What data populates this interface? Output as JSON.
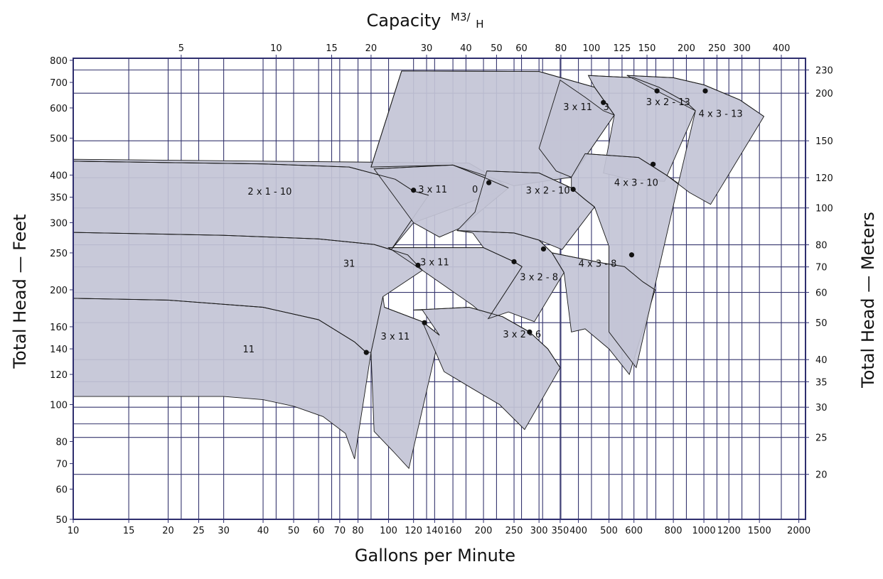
{
  "chart_data": {
    "type": "area",
    "title": "Capacity",
    "top_unit_main": "M3/",
    "top_unit_sub": "H",
    "xlabel": "Gallons per Minute",
    "ylabel": "Total Head — Feet",
    "y2label": "Total Head — Meters",
    "x_scale": "log",
    "y_scale": "log",
    "xlim": [
      10,
      2100
    ],
    "ylim": [
      50,
      810
    ],
    "grid": true,
    "colors": {
      "fill": "#c3c4d6",
      "frame": "#2e2e6e",
      "grid": "#35356e",
      "curve": "#1a1a1a",
      "dot": "#111111"
    },
    "x_ticks": [
      10,
      15,
      20,
      25,
      30,
      40,
      50,
      60,
      70,
      80,
      100,
      120,
      140,
      160,
      200,
      250,
      300,
      350,
      400,
      500,
      600,
      800,
      1000,
      1200,
      1500,
      2000
    ],
    "x_tick_labels": [
      "10",
      "15",
      "20",
      "25",
      "30",
      "40",
      "50",
      "60",
      "70",
      "80",
      "100",
      "120",
      "140",
      "160",
      "200",
      "250",
      "300",
      "350",
      "400",
      "500",
      "600",
      "800",
      "1000",
      "1200",
      "1500",
      "2000"
    ],
    "y_ticks": [
      50,
      60,
      70,
      80,
      100,
      120,
      140,
      160,
      200,
      250,
      300,
      350,
      400,
      500,
      600,
      700,
      800
    ],
    "y_tick_labels": [
      "50",
      "60",
      "70",
      "80",
      "100",
      "120",
      "140",
      "160",
      "200",
      "250",
      "300",
      "350",
      "400",
      "500",
      "600",
      "700",
      "800"
    ],
    "x2_ticks_gpm": [
      22,
      44,
      66,
      88,
      132,
      176,
      220,
      264,
      308,
      352,
      440,
      550,
      660,
      704,
      880,
      1100,
      1320,
      1760
    ],
    "x2_tick_labels": [
      "5",
      "10",
      "15",
      "20",
      "30",
      "40",
      "50",
      "60",
      "80",
      "100",
      "125",
      "150",
      "200",
      "250",
      "300",
      "400"
    ],
    "x2_label_gpm": [
      22,
      44,
      66,
      88,
      132,
      176,
      220,
      264,
      352,
      440,
      550,
      660,
      880,
      1100,
      1320,
      1760
    ],
    "y2_ticks_ft": [
      65.6,
      82,
      98.4,
      114.8,
      131.2,
      164,
      196.9,
      229.7,
      262.5,
      328,
      393.7,
      492,
      656,
      754.6
    ],
    "y2_tick_labels": [
      "20",
      "25",
      "30",
      "35",
      "40",
      "50",
      "60",
      "70",
      "80",
      "100",
      "120",
      "150",
      "200",
      "230"
    ],
    "extra_h_grid_ft": [
      89
    ],
    "regions": [
      {
        "name": "11",
        "label_at": [
          36,
          137
        ],
        "polygon": [
          [
            10,
            190
          ],
          [
            20,
            188
          ],
          [
            40,
            180
          ],
          [
            60,
            167
          ],
          [
            78,
            146
          ],
          [
            85,
            137
          ],
          [
            88,
            137
          ],
          [
            78,
            72
          ],
          [
            73,
            84
          ],
          [
            62,
            93
          ],
          [
            50,
            99
          ],
          [
            40,
            103
          ],
          [
            30,
            105
          ],
          [
            10,
            105
          ]
        ]
      },
      {
        "name": "31",
        "label_at": [
          75,
          230
        ],
        "polygon": [
          [
            10,
            283
          ],
          [
            30,
            278
          ],
          [
            60,
            272
          ],
          [
            90,
            263
          ],
          [
            115,
            247
          ],
          [
            128,
            225
          ],
          [
            96,
            192
          ],
          [
            88,
            137
          ],
          [
            85,
            137
          ],
          [
            78,
            146
          ],
          [
            60,
            167
          ],
          [
            40,
            180
          ],
          [
            20,
            188
          ],
          [
            10,
            190
          ]
        ]
      },
      {
        "name": "2 x 1 - 10",
        "label_at": [
          42,
          355
        ],
        "polygon": [
          [
            10,
            435
          ],
          [
            40,
            428
          ],
          [
            75,
            420
          ],
          [
            105,
            390
          ],
          [
            120,
            363
          ],
          [
            134,
            354
          ],
          [
            102,
            255
          ],
          [
            90,
            263
          ],
          [
            60,
            272
          ],
          [
            30,
            278
          ],
          [
            10,
            283
          ]
        ]
      },
      {
        "name": "3 x 11",
        "label_at": [
          105,
          148
        ],
        "polygon": [
          [
            97,
            180
          ],
          [
            128,
            165
          ],
          [
            145,
            152
          ],
          [
            116,
            68
          ],
          [
            104,
            75
          ],
          [
            90,
            85
          ],
          [
            88,
            137
          ],
          [
            96,
            192
          ]
        ]
      },
      {
        "name": "3 x 11",
        "label_at": [
          140,
          232
        ],
        "polygon": [
          [
            100,
            258
          ],
          [
            200,
            258
          ],
          [
            250,
            237
          ],
          [
            265,
            230
          ],
          [
            207,
            168
          ],
          [
            185,
            182
          ],
          [
            128,
            225
          ]
        ]
      },
      {
        "name": "3 x 11",
        "label_at": [
          138,
          360
        ],
        "polygon": [
          [
            102,
            255
          ],
          [
            134,
            354
          ],
          [
            120,
            363
          ],
          [
            105,
            390
          ],
          [
            75,
            420
          ],
          [
            40,
            428
          ],
          [
            10,
            435
          ],
          [
            10,
            440
          ],
          [
            180,
            430
          ],
          [
            220,
            390
          ],
          [
            240,
            370
          ],
          [
            120,
            300
          ]
        ]
      },
      {
        "name": "0",
        "label_at": [
          188,
          360
        ],
        "polygon": [
          [
            90,
            415
          ],
          [
            160,
            425
          ],
          [
            200,
            395
          ],
          [
            240,
            370
          ],
          [
            168,
            290
          ],
          [
            145,
            275
          ],
          [
            120,
            300
          ]
        ]
      },
      {
        "name": "3 x 11",
        "label_at": [
          398,
          592
        ],
        "polygon": [
          [
            88,
            420
          ],
          [
            110,
            750
          ],
          [
            300,
            748
          ],
          [
            450,
            680
          ],
          [
            520,
            575
          ],
          [
            380,
            395
          ],
          [
            250,
            375
          ],
          [
            200,
            400
          ],
          [
            160,
            425
          ]
        ]
      },
      {
        "name": "3",
        "label_at": [
          490,
          592
        ],
        "polygon": [
          [
            350,
            710
          ],
          [
            420,
            640
          ],
          [
            480,
            590
          ],
          [
            520,
            575
          ],
          [
            380,
            395
          ],
          [
            340,
            410
          ],
          [
            300,
            470
          ]
        ]
      },
      {
        "name": "3 x 2 - 6",
        "label_at": [
          265,
          150
        ],
        "polygon": [
          [
            120,
            177
          ],
          [
            180,
            180
          ],
          [
            230,
            170
          ],
          [
            280,
            155
          ],
          [
            320,
            140
          ],
          [
            350,
            125
          ],
          [
            270,
            86
          ],
          [
            225,
            100
          ],
          [
            185,
            110
          ],
          [
            150,
            122
          ],
          [
            128,
            165
          ],
          [
            145,
            152
          ],
          [
            128,
            177
          ]
        ]
      },
      {
        "name": "3 x 2 - 8",
        "label_at": [
          300,
          212
        ],
        "polygon": [
          [
            165,
            286
          ],
          [
            250,
            282
          ],
          [
            300,
            270
          ],
          [
            330,
            250
          ],
          [
            360,
            222
          ],
          [
            290,
            165
          ],
          [
            240,
            175
          ],
          [
            207,
            168
          ],
          [
            265,
            230
          ],
          [
            250,
            237
          ],
          [
            200,
            258
          ],
          [
            185,
            282
          ]
        ]
      },
      {
        "name": "3 x 2 - 10",
        "label_at": [
          320,
          358
        ],
        "polygon": [
          [
            205,
            410
          ],
          [
            300,
            405
          ],
          [
            380,
            370
          ],
          [
            420,
            345
          ],
          [
            450,
            330
          ],
          [
            355,
            255
          ],
          [
            300,
            270
          ],
          [
            250,
            282
          ],
          [
            165,
            286
          ],
          [
            188,
            320
          ]
        ]
      },
      {
        "name": "3 x 2 - 13",
        "label_at": [
          770,
          610
        ],
        "polygon": [
          [
            430,
            730
          ],
          [
            600,
            720
          ],
          [
            720,
            680
          ],
          [
            880,
            620
          ],
          [
            940,
            590
          ],
          [
            750,
            385
          ],
          [
            580,
            390
          ],
          [
            480,
            405
          ],
          [
            520,
            575
          ],
          [
            450,
            680
          ]
        ]
      },
      {
        "name": "4 x 3 - 8",
        "label_at": [
          460,
          230
        ],
        "polygon": [
          [
            330,
            250
          ],
          [
            480,
            235
          ],
          [
            560,
            230
          ],
          [
            640,
            210
          ],
          [
            700,
            200
          ],
          [
            580,
            120
          ],
          [
            500,
            140
          ],
          [
            420,
            158
          ],
          [
            380,
            155
          ],
          [
            360,
            222
          ],
          [
            330,
            250
          ]
        ]
      },
      {
        "name": "4 x 3 - 10",
        "label_at": [
          610,
          375
        ],
        "polygon": [
          [
            420,
            455
          ],
          [
            620,
            445
          ],
          [
            760,
            400
          ],
          [
            830,
            380
          ],
          [
            610,
            125
          ],
          [
            500,
            155
          ],
          [
            500,
            260
          ],
          [
            450,
            330
          ],
          [
            420,
            345
          ],
          [
            380,
            370
          ],
          [
            380,
            395
          ]
        ]
      },
      {
        "name": "4 x 3 - 13",
        "label_at": [
          1130,
          568
        ],
        "polygon": [
          [
            570,
            730
          ],
          [
            800,
            720
          ],
          [
            1000,
            690
          ],
          [
            1300,
            630
          ],
          [
            1550,
            570
          ],
          [
            1050,
            335
          ],
          [
            900,
            360
          ],
          [
            760,
            400
          ],
          [
            830,
            380
          ],
          [
            940,
            590
          ]
        ]
      }
    ],
    "curves": [
      [
        [
          10,
          190
        ],
        [
          20,
          188
        ],
        [
          40,
          180
        ],
        [
          60,
          167
        ],
        [
          78,
          146
        ],
        [
          85,
          137
        ]
      ],
      [
        [
          10,
          283
        ],
        [
          30,
          278
        ],
        [
          60,
          272
        ],
        [
          90,
          263
        ],
        [
          115,
          247
        ],
        [
          128,
          225
        ]
      ],
      [
        [
          10,
          435
        ],
        [
          40,
          428
        ],
        [
          75,
          420
        ],
        [
          105,
          390
        ],
        [
          120,
          363
        ],
        [
          134,
          354
        ]
      ],
      [
        [
          97,
          180
        ],
        [
          128,
          165
        ],
        [
          145,
          152
        ]
      ],
      [
        [
          100,
          258
        ],
        [
          200,
          258
        ],
        [
          250,
          237
        ],
        [
          265,
          230
        ]
      ],
      [
        [
          90,
          415
        ],
        [
          160,
          425
        ],
        [
          200,
          395
        ],
        [
          240,
          370
        ]
      ],
      [
        [
          88,
          420
        ],
        [
          110,
          750
        ],
        [
          300,
          748
        ],
        [
          450,
          680
        ],
        [
          520,
          575
        ]
      ],
      [
        [
          120,
          177
        ],
        [
          180,
          180
        ],
        [
          230,
          170
        ],
        [
          280,
          155
        ],
        [
          320,
          140
        ],
        [
          350,
          125
        ]
      ],
      [
        [
          165,
          286
        ],
        [
          250,
          282
        ],
        [
          300,
          270
        ],
        [
          330,
          250
        ],
        [
          360,
          222
        ]
      ],
      [
        [
          205,
          410
        ],
        [
          300,
          405
        ],
        [
          380,
          370
        ],
        [
          420,
          345
        ],
        [
          450,
          330
        ]
      ],
      [
        [
          430,
          730
        ],
        [
          600,
          720
        ],
        [
          720,
          680
        ],
        [
          880,
          620
        ],
        [
          940,
          590
        ]
      ],
      [
        [
          330,
          250
        ],
        [
          480,
          235
        ],
        [
          560,
          230
        ],
        [
          640,
          210
        ],
        [
          700,
          200
        ]
      ],
      [
        [
          420,
          455
        ],
        [
          620,
          445
        ],
        [
          760,
          400
        ],
        [
          830,
          380
        ]
      ],
      [
        [
          570,
          730
        ],
        [
          800,
          720
        ],
        [
          1000,
          690
        ],
        [
          1300,
          630
        ],
        [
          1550,
          570
        ]
      ]
    ],
    "bep_points": [
      [
        85,
        137
      ],
      [
        120,
        365
      ],
      [
        124,
        232
      ],
      [
        130,
        164
      ],
      [
        208,
        382
      ],
      [
        250,
        237
      ],
      [
        280,
        155
      ],
      [
        310,
        256
      ],
      [
        385,
        367
      ],
      [
        480,
        620
      ],
      [
        590,
        247
      ],
      [
        690,
        427
      ],
      [
        710,
        665
      ],
      [
        1010,
        665
      ]
    ]
  }
}
